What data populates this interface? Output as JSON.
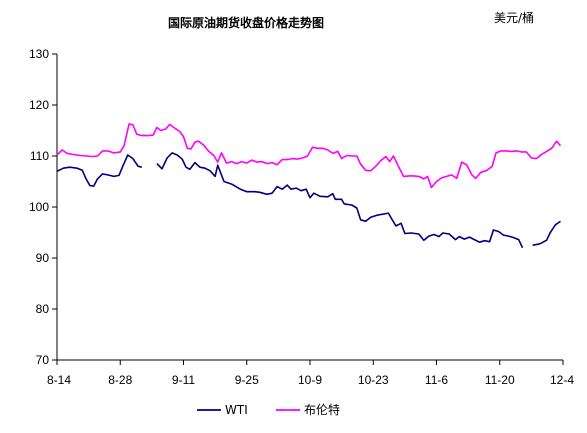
{
  "chart_data": {
    "type": "line",
    "title": "国际原油期货收盘价格走势图",
    "unit": "美元/桶",
    "ylim": [
      70,
      130
    ],
    "yticks": [
      70,
      80,
      90,
      100,
      110,
      120,
      130
    ],
    "xticks": [
      "8-14",
      "8-28",
      "9-11",
      "9-25",
      "10-9",
      "10-23",
      "11-6",
      "11-20",
      "12-4"
    ],
    "grid": false,
    "legend_position": "bottom",
    "series": [
      {
        "name": "WTI",
        "color": "#000080",
        "points": [
          [
            0,
            107
          ],
          [
            0.5,
            107.6
          ],
          [
            1,
            107.8
          ],
          [
            1.6,
            107.6
          ],
          [
            2,
            107.2
          ],
          [
            2.3,
            105.5
          ],
          [
            2.6,
            104.2
          ],
          [
            2.9,
            104.1
          ],
          [
            3.2,
            105.5
          ],
          [
            3.6,
            106.5
          ],
          [
            4,
            106.3
          ],
          [
            4.5,
            106
          ],
          [
            4.9,
            106.2
          ],
          [
            5.2,
            108
          ],
          [
            5.6,
            110.2
          ],
          [
            6,
            109.5
          ],
          [
            6.4,
            108
          ],
          [
            6.7,
            107.8
          ],
          null,
          [
            7.9,
            108.5
          ],
          [
            8.3,
            107.5
          ],
          [
            8.7,
            109.6
          ],
          [
            9.1,
            110.6
          ],
          [
            9.5,
            110.2
          ],
          [
            9.9,
            109.4
          ],
          [
            10.2,
            107.8
          ],
          [
            10.5,
            107.4
          ],
          [
            10.9,
            108.7
          ],
          [
            11.3,
            107.8
          ],
          [
            11.7,
            107.6
          ],
          [
            12.1,
            107.1
          ],
          [
            12.5,
            106
          ],
          [
            12.7,
            108.2
          ],
          [
            13.2,
            105
          ],
          [
            13.8,
            104.5
          ],
          [
            14.5,
            103.5
          ],
          [
            15,
            103
          ],
          [
            15.6,
            103
          ],
          [
            16,
            102.9
          ],
          [
            16.6,
            102.5
          ],
          [
            17,
            102.7
          ],
          [
            17.4,
            104
          ],
          [
            17.8,
            103.5
          ],
          [
            18.2,
            104.3
          ],
          [
            18.5,
            103.5
          ],
          [
            18.9,
            103.7
          ],
          [
            19.3,
            103.2
          ],
          [
            19.7,
            103.5
          ],
          [
            20,
            101.8
          ],
          [
            20.3,
            102.7
          ],
          [
            20.8,
            102.1
          ],
          [
            21.4,
            102
          ],
          [
            21.8,
            102.6
          ],
          [
            22,
            101.5
          ],
          [
            22.5,
            101.5
          ],
          [
            22.7,
            100.6
          ],
          [
            23.3,
            100.4
          ],
          [
            23.7,
            99.8
          ],
          [
            24,
            97.5
          ],
          [
            24.4,
            97.2
          ],
          [
            24.8,
            98
          ],
          [
            25.3,
            98.4
          ],
          [
            25.8,
            98.6
          ],
          [
            26.2,
            98.8
          ],
          [
            26.5,
            97.5
          ],
          [
            26.8,
            96.3
          ],
          [
            27.2,
            96.8
          ],
          [
            27.5,
            94.8
          ],
          [
            28,
            94.9
          ],
          [
            28.6,
            94.7
          ],
          [
            29,
            93.5
          ],
          [
            29.4,
            94.3
          ],
          [
            29.8,
            94.6
          ],
          [
            30.2,
            94.2
          ],
          [
            30.5,
            94.9
          ],
          [
            31,
            94.7
          ],
          [
            31.5,
            93.6
          ],
          [
            31.8,
            94.2
          ],
          [
            32.2,
            93.7
          ],
          [
            32.6,
            94.1
          ],
          [
            33,
            93.6
          ],
          [
            33.4,
            93.1
          ],
          [
            33.8,
            93.4
          ],
          [
            34.2,
            93.2
          ],
          [
            34.5,
            95.5
          ],
          [
            34.9,
            95.2
          ],
          [
            35.3,
            94.5
          ],
          [
            35.7,
            94.3
          ],
          [
            36.1,
            94
          ],
          [
            36.5,
            93.6
          ],
          [
            36.8,
            92
          ],
          null,
          [
            37.6,
            92.5
          ],
          [
            38.2,
            92.8
          ],
          [
            38.7,
            93.5
          ],
          [
            39,
            95
          ],
          [
            39.4,
            96.5
          ],
          [
            39.8,
            97.2
          ]
        ]
      },
      {
        "name": "布伦特",
        "color": "#ff00ff",
        "points": [
          [
            0,
            110.2
          ],
          [
            0.4,
            111.2
          ],
          [
            0.8,
            110.5
          ],
          [
            1.3,
            110.3
          ],
          [
            1.8,
            110.1
          ],
          [
            2.4,
            110
          ],
          [
            2.8,
            109.9
          ],
          [
            3.2,
            110
          ],
          [
            3.6,
            111
          ],
          [
            4,
            111
          ],
          [
            4.5,
            110.6
          ],
          [
            5,
            110.8
          ],
          [
            5.3,
            112
          ],
          [
            5.7,
            116.3
          ],
          [
            6,
            116.1
          ],
          [
            6.3,
            114.3
          ],
          [
            6.7,
            114
          ],
          [
            7.2,
            114
          ],
          [
            7.6,
            114.1
          ],
          [
            7.9,
            115.6
          ],
          [
            8.2,
            115
          ],
          [
            8.6,
            115.3
          ],
          [
            8.9,
            116.2
          ],
          [
            9.3,
            115.5
          ],
          [
            9.7,
            114.8
          ],
          [
            10,
            113.8
          ],
          [
            10.3,
            111.5
          ],
          [
            10.6,
            111.4
          ],
          [
            10.9,
            112.7
          ],
          [
            11.2,
            112.9
          ],
          [
            11.6,
            112.1
          ],
          [
            12,
            110.9
          ],
          [
            12.4,
            110.1
          ],
          [
            12.7,
            108.8
          ],
          [
            13,
            110.6
          ],
          [
            13.4,
            108.6
          ],
          [
            13.8,
            108.9
          ],
          [
            14.2,
            108.5
          ],
          [
            14.6,
            108.9
          ],
          [
            15,
            108.6
          ],
          [
            15.4,
            109.2
          ],
          [
            15.8,
            108.8
          ],
          [
            16.2,
            108.9
          ],
          [
            16.6,
            108.5
          ],
          [
            17,
            108.7
          ],
          [
            17.4,
            108.3
          ],
          [
            17.8,
            109.3
          ],
          [
            18.2,
            109.3
          ],
          [
            18.6,
            109.5
          ],
          [
            19,
            109.4
          ],
          [
            19.4,
            109.6
          ],
          [
            19.8,
            110
          ],
          [
            20.2,
            111.7
          ],
          [
            20.6,
            111.5
          ],
          [
            21,
            111.5
          ],
          [
            21.4,
            111.2
          ],
          [
            21.8,
            110.5
          ],
          [
            22.2,
            110.9
          ],
          [
            22.5,
            109.5
          ],
          [
            22.9,
            110.1
          ],
          [
            23.3,
            110
          ],
          [
            23.7,
            110
          ],
          [
            24,
            108.4
          ],
          [
            24.4,
            107.2
          ],
          [
            24.8,
            107.1
          ],
          [
            25.2,
            108
          ],
          [
            25.6,
            109.1
          ],
          [
            26,
            109.9
          ],
          [
            26.3,
            108.9
          ],
          [
            26.6,
            110
          ],
          [
            27,
            107.9
          ],
          [
            27.4,
            106
          ],
          [
            27.8,
            106.1
          ],
          [
            28.2,
            106.1
          ],
          [
            28.6,
            106
          ],
          [
            29,
            105.5
          ],
          [
            29.3,
            106
          ],
          [
            29.6,
            103.8
          ],
          [
            30,
            105
          ],
          [
            30.4,
            105.7
          ],
          [
            30.8,
            106
          ],
          [
            31.2,
            106.3
          ],
          [
            31.6,
            105.6
          ],
          [
            32,
            108.8
          ],
          [
            32.4,
            108.2
          ],
          [
            32.8,
            106.3
          ],
          [
            33.1,
            105.6
          ],
          [
            33.5,
            106.8
          ],
          [
            34,
            107.2
          ],
          [
            34.4,
            108
          ],
          [
            34.7,
            110.6
          ],
          [
            35.1,
            111
          ],
          [
            35.5,
            111
          ],
          [
            35.9,
            110.9
          ],
          [
            36.3,
            111
          ],
          [
            36.7,
            110.8
          ],
          [
            37.1,
            110.8
          ],
          [
            37.5,
            109.6
          ],
          [
            37.9,
            109.5
          ],
          [
            38.3,
            110.3
          ],
          [
            38.7,
            110.9
          ],
          [
            39.1,
            111.5
          ],
          [
            39.5,
            112.9
          ],
          [
            39.8,
            112
          ]
        ]
      }
    ]
  }
}
